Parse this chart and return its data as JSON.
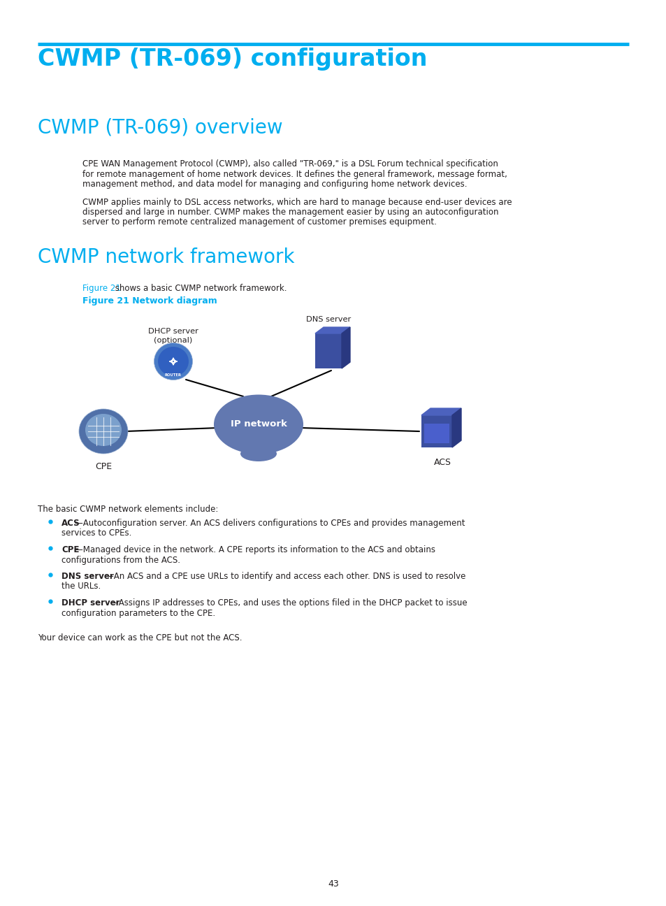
{
  "page_title": "CWMP (TR-069) configuration",
  "section1_title": "CWMP (TR-069) overview",
  "section2_title": "CWMP network framework",
  "title_color": "#00AEEF",
  "section_color": "#00AEEF",
  "header_line_color": "#00AEEF",
  "body_color": "#231F20",
  "figure_label": "Figure 21 Network diagram",
  "figure_ref_text": "Figure 21",
  "figure_ref_suffix": " shows a basic CWMP network framework.",
  "para1_lines": [
    "CPE WAN Management Protocol (CWMP), also called \"TR-069,\" is a DSL Forum technical specification",
    "for remote management of home network devices. It defines the general framework, message format,",
    "management method, and data model for managing and configuring home network devices."
  ],
  "para2_lines": [
    "CWMP applies mainly to DSL access networks, which are hard to manage because end-user devices are",
    "dispersed and large in number. CWMP makes the management easier by using an autoconfiguration",
    "server to perform remote centralized management of customer premises equipment."
  ],
  "intro_text": "The basic CWMP network elements include:",
  "bullets": [
    {
      "bold": "ACS",
      "line1": "—Autoconfiguration server. An ACS delivers configurations to CPEs and provides management",
      "line2": "services to CPEs."
    },
    {
      "bold": "CPE",
      "line1": "—Managed device in the network. A CPE reports its information to the ACS and obtains",
      "line2": "configurations from the ACS."
    },
    {
      "bold": "DNS server",
      "line1": "—An ACS and a CPE use URLs to identify and access each other. DNS is used to resolve",
      "line2": "the URLs."
    },
    {
      "bold": "DHCP server",
      "line1": "—Assigns IP addresses to CPEs, and uses the options filed in the DHCP packet to issue",
      "line2": "configuration parameters to the CPE."
    }
  ],
  "footer_text": "Your device can work as the CPE but not the ACS.",
  "page_number": "43",
  "bg_color": "#FFFFFF",
  "node_ip_label": "IP network",
  "node_cpe_label": "CPE",
  "node_acs_label": "ACS",
  "node_dhcp_label1": "DHCP server",
  "node_dhcp_label2": "(optional)",
  "node_dns_label": "DNS server",
  "ip_color": "#6278B0",
  "dhcp_color_outer": "#4A7CC7",
  "dhcp_color_inner": "#6B9FDE",
  "cpe_color_outer": "#5070A8",
  "cpe_color_inner": "#7BA0CC",
  "acs_color_front": "#3B4FA0",
  "acs_color_top": "#4C62BE",
  "acs_color_side": "#293880",
  "dns_color_front": "#3B4FA0",
  "dns_color_top": "#4C62BE",
  "dns_color_side": "#293880"
}
